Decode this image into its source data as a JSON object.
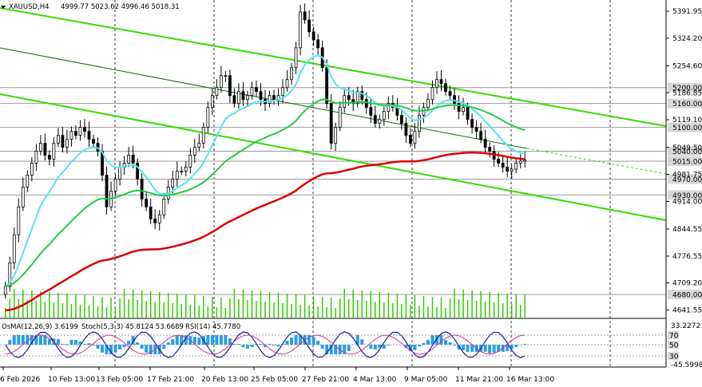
{
  "chart_data": {
    "type": "candlestick",
    "symbol": "XAUUSD,H4",
    "ohlc_header": "4999.77 5023.62 4996.46 5018.31",
    "colors": {
      "background": "#ffffff",
      "grid": "#000000",
      "candles": "#000000",
      "channel": "#33dd00",
      "ema_fast": "#55e5ee",
      "ema_mid": "#22cc44",
      "ema_slow": "#dd0000",
      "volume": "#33cc00",
      "level_box": "#d8d8d8",
      "osma_hist": "#2a9fe0",
      "stoch_main": "#1a1a99",
      "rsi": "#cc3399"
    },
    "y_axis": {
      "ticks": [
        "5391.95",
        "5324.20",
        "5254.60",
        "5186.85",
        "5119.10",
        "5049.50",
        "4981.75",
        "4914.00",
        "4844.55",
        "4776.55",
        "4709.20",
        "4641.55"
      ],
      "range": [
        4641.55,
        5410
      ]
    },
    "price_levels": [
      "5200.00",
      "5160.00",
      "5100.00",
      "5040.00",
      "5015.00",
      "4970.00",
      "4930.00",
      "4680.00"
    ],
    "x_axis_labels": [
      "6 Feb 2026",
      "10 Feb 13:00",
      "13 Feb 05:00",
      "17 Feb 21:00",
      "20 Feb 13:00",
      "25 Feb 05:00",
      "27 Feb 21:00",
      "4 Mar 13:00",
      "9 Mar 05:00",
      "11 Mar 21:00",
      "16 Mar 13:00"
    ],
    "close_series": [
      4700,
      4760,
      4830,
      4900,
      4950,
      4980,
      5010,
      5040,
      5060,
      5030,
      5020,
      5060,
      5080,
      5050,
      5070,
      5090,
      5080,
      5100,
      5090,
      5070,
      5060,
      5040,
      4980,
      4900,
      4940,
      4970,
      5000,
      5010,
      5030,
      5010,
      4970,
      4920,
      4900,
      4870,
      4860,
      4880,
      4920,
      4950,
      4970,
      4990,
      4990,
      5000,
      5030,
      5050,
      5060,
      5100,
      5150,
      5180,
      5200,
      5230,
      5230,
      5180,
      5160,
      5190,
      5170,
      5180,
      5200,
      5190,
      5170,
      5160,
      5180,
      5170,
      5180,
      5200,
      5220,
      5250,
      5300,
      5390,
      5370,
      5340,
      5320,
      5300,
      5250,
      5160,
      5060,
      5100,
      5150,
      5180,
      5170,
      5160,
      5190,
      5170,
      5150,
      5130,
      5110,
      5120,
      5140,
      5160,
      5150,
      5130,
      5110,
      5080,
      5060,
      5090,
      5130,
      5150,
      5170,
      5200,
      5220,
      5210,
      5190,
      5180,
      5160,
      5140,
      5150,
      5120,
      5100,
      5090,
      5070,
      5050,
      5040,
      5020,
      5010,
      5000,
      4990,
      4995,
      5010,
      5015,
      5018
    ],
    "channel_note": "Descending channel lines and moving averages as shown",
    "indicator_header": {
      "osma": "OsMA(12,26,9) 3.6199",
      "stoch": "Stoch(5,3,3) 45.8124 53.6689",
      "rsi": "RSI(14) 45.7780"
    },
    "indicator_axis": [
      "33.2272",
      "-45.5998"
    ],
    "indicator_levels": [
      "70",
      "50",
      "30"
    ]
  }
}
